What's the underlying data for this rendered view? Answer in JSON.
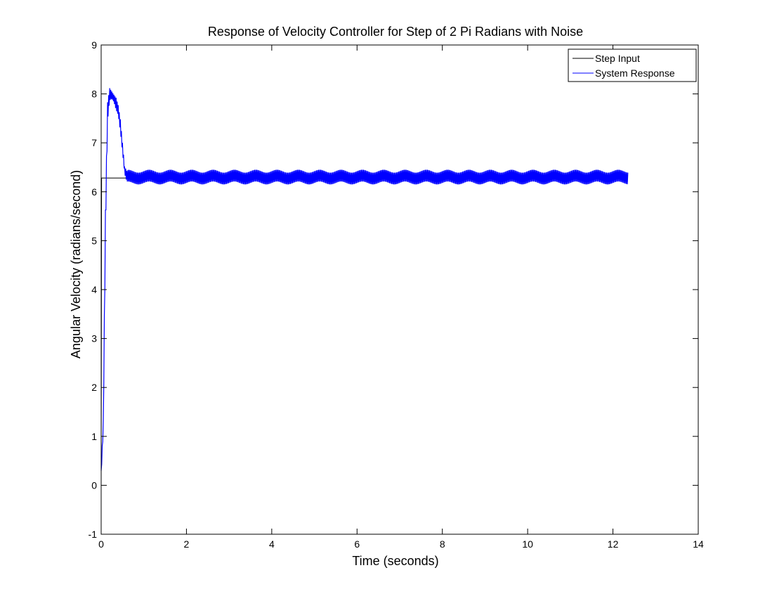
{
  "chart_data": {
    "type": "line",
    "title": "Response of Velocity Controller for Step of 2 Pi Radians with Noise",
    "xlabel": "Time (seconds)",
    "ylabel": "Angular Velocity (radians/second)",
    "xlim": [
      0,
      14
    ],
    "ylim": [
      -1,
      9
    ],
    "xticks": [
      0,
      2,
      4,
      6,
      8,
      10,
      12,
      14
    ],
    "yticks": [
      -1,
      0,
      1,
      2,
      3,
      4,
      5,
      6,
      7,
      8,
      9
    ],
    "xtick_labels": [
      "0",
      "2",
      "4",
      "6",
      "8",
      "10",
      "12",
      "14"
    ],
    "ytick_labels": [
      "-1",
      "0",
      "1",
      "2",
      "3",
      "4",
      "5",
      "6",
      "7",
      "8",
      "9"
    ],
    "grid": false,
    "legend_position": "top-right",
    "series": [
      {
        "name": "Step Input",
        "color": "#000000",
        "x": [
          0,
          0.01,
          0.6
        ],
        "y": [
          0,
          6.28,
          6.28
        ]
      },
      {
        "name": "System Response",
        "color": "#0000ff",
        "envelope": true,
        "x": [
          0.0,
          0.05,
          0.1,
          0.15,
          0.2,
          0.25,
          0.3,
          0.35,
          0.4,
          0.45,
          0.5,
          0.55,
          0.6,
          0.65,
          0.8,
          1.0,
          2.0,
          4.0,
          6.0,
          8.0,
          10.0,
          12.0,
          12.35
        ],
        "y_min": [
          0.2,
          1.1,
          5.0,
          7.4,
          7.85,
          7.9,
          7.85,
          7.7,
          7.6,
          7.25,
          6.8,
          6.35,
          6.18,
          6.18,
          6.18,
          6.18,
          6.18,
          6.18,
          6.18,
          6.18,
          6.18,
          6.18,
          6.18
        ],
        "y_max": [
          0.3,
          1.3,
          5.6,
          7.8,
          8.1,
          8.05,
          8.0,
          7.95,
          7.8,
          7.5,
          7.0,
          6.5,
          6.4,
          6.42,
          6.42,
          6.42,
          6.42,
          6.42,
          6.42,
          6.42,
          6.42,
          6.42,
          6.42
        ],
        "oscillation_period": 0.05
      }
    ]
  }
}
